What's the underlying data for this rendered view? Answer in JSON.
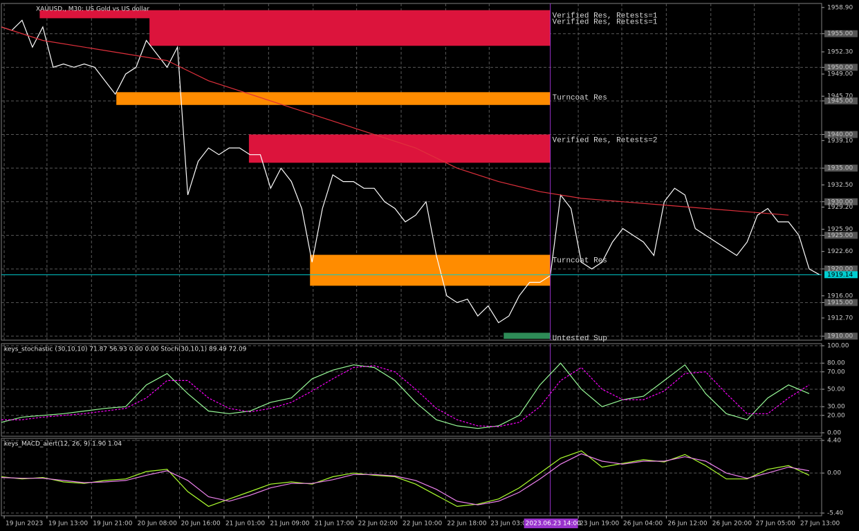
{
  "chart_data": [
    {
      "type": "line",
      "title": "XAUUSD., M30:  US Gold vs US dollar",
      "xlim": [
        0,
        79.2
      ],
      "ylim": [
        1909.4,
        1959.5
      ],
      "xticks": [
        {
          "value": 0.27,
          "label": "19 Jun 2023"
        },
        {
          "value": 4.4,
          "label": "19 Jun 13:00"
        },
        {
          "value": 8.7,
          "label": "19 Jun 21:00"
        },
        {
          "value": 13,
          "label": "20 Jun 08:00"
        },
        {
          "value": 17.2,
          "label": "20 Jun 16:00"
        },
        {
          "value": 21.5,
          "label": "21 Jun 01:00"
        },
        {
          "value": 25.8,
          "label": "21 Jun 09:00"
        },
        {
          "value": 30.1,
          "label": "21 Jun 17:00"
        },
        {
          "value": 34.3,
          "label": "22 Jun 02:00"
        },
        {
          "value": 38.6,
          "label": "22 Jun 10:00"
        },
        {
          "value": 42.9,
          "label": "22 Jun 18:00"
        },
        {
          "value": 47.1,
          "label": "23 Jun 03:00"
        },
        {
          "value": 55.7,
          "label": "23 Jun 19:00"
        },
        {
          "value": 59.9,
          "label": "26 Jun 04:00"
        },
        {
          "value": 64.2,
          "label": "26 Jun 12:00"
        },
        {
          "value": 68.5,
          "label": "26 Jun 20:00"
        },
        {
          "value": 72.7,
          "label": "27 Jun 05:00"
        },
        {
          "value": 77,
          "label": "27 Jun 13:00"
        }
      ],
      "cursor": {
        "value": 53,
        "label": "2023.06.23 14:00"
      },
      "yticks": [
        {
          "value": 1958.9,
          "label": "1958.90"
        },
        {
          "value": 1955,
          "label": "1955.00"
        },
        {
          "value": 1952.3,
          "label": "1952.30"
        },
        {
          "value": 1950,
          "label": "1950.00"
        },
        {
          "value": 1949,
          "label": "1949.00"
        },
        {
          "value": 1945.7,
          "label": "1945.70"
        },
        {
          "value": 1945,
          "label": "1945.00"
        },
        {
          "value": 1940,
          "label": "1940.00"
        },
        {
          "value": 1939.1,
          "label": "1939.10"
        },
        {
          "value": 1935,
          "label": "1935.00"
        },
        {
          "value": 1932.5,
          "label": "1932.50"
        },
        {
          "value": 1930,
          "label": "1930.00"
        },
        {
          "value": 1929.2,
          "label": "1929.20"
        },
        {
          "value": 1925.9,
          "label": "1925.90"
        },
        {
          "value": 1925,
          "label": "1925.00"
        },
        {
          "value": 1922.6,
          "label": "1922.60"
        },
        {
          "value": 1920,
          "label": "1920.00"
        },
        {
          "value": 1916,
          "label": "1916.00"
        },
        {
          "value": 1915,
          "label": "1915.00"
        },
        {
          "value": 1912.7,
          "label": "1912.70"
        },
        {
          "value": 1910,
          "label": "1910.00"
        }
      ],
      "current_price": 1919.14,
      "zones": [
        {
          "label": "Verified Res, Retests=1",
          "x": [
            3.7,
            53
          ],
          "low": 1957.3,
          "high": 1958.5,
          "color": "#dc143c"
        },
        {
          "label": "Verified Res, Retests=1",
          "x": [
            14.3,
            53
          ],
          "low": 1953.2,
          "high": 1957.6,
          "color": "#dc143c"
        },
        {
          "label": "Turncoat Res",
          "x": [
            11.1,
            53
          ],
          "low": 1944.4,
          "high": 1946.3,
          "color": "#ff8c00"
        },
        {
          "label": "Verified Res, Retests=2",
          "x": [
            23.9,
            53
          ],
          "low": 1935.8,
          "high": 1940,
          "color": "#dc143c"
        },
        {
          "label": "Turncoat Res",
          "x": [
            29.8,
            53
          ],
          "low": 1917.5,
          "high": 1922.1,
          "color": "#ff8c00"
        },
        {
          "label": "Untested Sup",
          "x": [
            48.5,
            53
          ],
          "low": 1909.6,
          "high": 1910.5,
          "color": "#2e8b57"
        }
      ],
      "series": [
        {
          "name": "XAUUSD.",
          "color": "#ffffff",
          "x": [
            0,
            1,
            2,
            3,
            4,
            5,
            6,
            7,
            8,
            9,
            10,
            11,
            12,
            13,
            14,
            15,
            16,
            17,
            18,
            19,
            20,
            21,
            22,
            23,
            24,
            25,
            26,
            27,
            28,
            29,
            30,
            31,
            32,
            33,
            34,
            35,
            36,
            37,
            38,
            39,
            40,
            41,
            42,
            43,
            44,
            45,
            46,
            47,
            48,
            49,
            50,
            51,
            52,
            53,
            54,
            55,
            56,
            57,
            58,
            59,
            60,
            61,
            62,
            63,
            64,
            65,
            66,
            67,
            68,
            69,
            70,
            71,
            72,
            73,
            74,
            75,
            76,
            77,
            78,
            79
          ],
          "values": [
            1956,
            1955.5,
            1957,
            1953,
            1956,
            1950,
            1950.5,
            1950,
            1950.5,
            1950,
            1948,
            1946,
            1949,
            1950,
            1954,
            1952,
            1950,
            1953,
            1931,
            1936,
            1938,
            1937,
            1938,
            1938,
            1937,
            1937,
            1932,
            1935,
            1933,
            1929,
            1921,
            1929,
            1934,
            1933,
            1933,
            1932,
            1932,
            1930,
            1929,
            1927,
            1928,
            1930,
            1922,
            1916,
            1915,
            1915.5,
            1913,
            1914.5,
            1912,
            1913,
            1916,
            1918,
            1918,
            1919,
            1931,
            1929,
            1921,
            1920,
            1921,
            1924,
            1926,
            1925,
            1924,
            1922,
            1930,
            1932,
            1931,
            1926,
            1925,
            1924,
            1923,
            1922,
            1924,
            1928,
            1929,
            1927,
            1927,
            1925,
            1920,
            1919.14
          ]
        },
        {
          "name": "MA",
          "color": "#e0303c",
          "x": [
            0,
            4,
            8,
            12,
            16,
            20,
            24,
            28,
            32,
            36,
            40,
            44,
            48,
            52,
            56,
            60,
            64,
            68,
            72,
            76
          ],
          "values": [
            1956,
            1954,
            1953,
            1952,
            1951,
            1948,
            1946,
            1944,
            1942,
            1940,
            1938,
            1935,
            1933,
            1931.5,
            1930.5,
            1930,
            1929.5,
            1929,
            1928.5,
            1928
          ]
        }
      ]
    },
    {
      "type": "line",
      "title": "keys_stochastic (30,10,10) 71.87 56.93 0.00 0.00 Stoch(30,10,1) 89.49 72.09",
      "xlim": [
        0,
        79.2
      ],
      "ylim": [
        -4,
        102.4
      ],
      "yticks": [
        {
          "value": 100,
          "label": "100.00"
        },
        {
          "value": 80,
          "label": "80.00"
        },
        {
          "value": 70,
          "label": "70.00"
        },
        {
          "value": 50,
          "label": "50.00"
        },
        {
          "value": 30,
          "label": "30.00"
        },
        {
          "value": 20,
          "label": "20.00"
        },
        {
          "value": 0,
          "label": "0.00"
        }
      ],
      "series": [
        {
          "name": "Main",
          "color": "#98fb98",
          "dashed": false,
          "x": [
            0,
            2,
            4,
            6,
            8,
            10,
            12,
            14,
            16,
            18,
            20,
            22,
            24,
            26,
            28,
            30,
            32,
            34,
            36,
            38,
            40,
            42,
            44,
            46,
            48,
            50,
            52,
            54,
            56,
            58,
            60,
            62,
            64,
            66,
            68,
            70,
            72,
            74,
            76,
            78
          ],
          "values": [
            12,
            18,
            20,
            22,
            25,
            28,
            30,
            55,
            68,
            45,
            25,
            22,
            25,
            35,
            40,
            62,
            72,
            78,
            75,
            60,
            35,
            15,
            8,
            5,
            8,
            20,
            55,
            80,
            50,
            30,
            38,
            42,
            60,
            78,
            45,
            22,
            15,
            40,
            55,
            45
          ]
        },
        {
          "name": "Signal",
          "color": "#ff00ff",
          "dashed": true,
          "x": [
            0,
            2,
            4,
            6,
            8,
            10,
            12,
            14,
            16,
            18,
            20,
            22,
            24,
            26,
            28,
            30,
            32,
            34,
            36,
            38,
            40,
            42,
            44,
            46,
            48,
            50,
            52,
            54,
            56,
            58,
            60,
            62,
            64,
            66,
            68,
            70,
            72,
            74,
            76,
            78
          ],
          "values": [
            15,
            15,
            18,
            20,
            22,
            25,
            28,
            40,
            60,
            60,
            40,
            28,
            24,
            28,
            35,
            48,
            62,
            75,
            77,
            70,
            50,
            28,
            15,
            8,
            7,
            12,
            30,
            60,
            75,
            50,
            38,
            38,
            48,
            68,
            70,
            45,
            22,
            22,
            40,
            55
          ]
        }
      ]
    },
    {
      "type": "line",
      "title": "keys_MACD_alert(12, 26, 9) 1.90 1.04",
      "xlim": [
        0,
        79.2
      ],
      "ylim": [
        -5.77,
        4.68
      ],
      "yticks": [
        {
          "value": 4.4,
          "label": "4.40"
        },
        {
          "value": 0,
          "label": "0.00"
        },
        {
          "value": -5.4,
          "label": "-5.40"
        }
      ],
      "series": [
        {
          "name": "MACD",
          "color": "#adff2f",
          "dashed": false,
          "x": [
            0,
            2,
            4,
            6,
            8,
            10,
            12,
            14,
            16,
            18,
            20,
            22,
            24,
            26,
            28,
            30,
            32,
            34,
            36,
            38,
            40,
            42,
            44,
            46,
            48,
            50,
            52,
            54,
            56,
            58,
            60,
            62,
            64,
            66,
            68,
            70,
            72,
            74,
            76,
            78
          ],
          "values": [
            -0.5,
            -0.8,
            -0.6,
            -1.2,
            -1.4,
            -1.0,
            -0.8,
            0.2,
            0.5,
            -2.5,
            -4.5,
            -3.5,
            -2.5,
            -1.5,
            -1.2,
            -1.5,
            -0.5,
            0,
            -0.3,
            -0.5,
            -1.5,
            -3.0,
            -4.5,
            -4.2,
            -3.5,
            -2.0,
            0,
            2.0,
            3.0,
            0.8,
            1.3,
            1.8,
            1.5,
            2.5,
            1.0,
            -0.8,
            -0.8,
            0.5,
            1.0,
            -0.3
          ]
        },
        {
          "name": "Signal",
          "color": "#ee82ee",
          "dashed": false,
          "x": [
            0,
            2,
            4,
            6,
            8,
            10,
            12,
            14,
            16,
            18,
            20,
            22,
            24,
            26,
            28,
            30,
            32,
            34,
            36,
            38,
            40,
            42,
            44,
            46,
            48,
            50,
            52,
            54,
            56,
            58,
            60,
            62,
            64,
            66,
            68,
            70,
            72,
            74,
            76,
            78
          ],
          "values": [
            -0.6,
            -0.7,
            -0.7,
            -1.0,
            -1.3,
            -1.2,
            -1.0,
            -0.3,
            0.3,
            -1.0,
            -3.2,
            -3.8,
            -3.0,
            -2.0,
            -1.4,
            -1.4,
            -0.9,
            -0.2,
            -0.2,
            -0.4,
            -1.0,
            -2.2,
            -3.8,
            -4.3,
            -3.8,
            -2.6,
            -0.8,
            1.2,
            2.6,
            1.6,
            1.2,
            1.6,
            1.6,
            2.2,
            1.6,
            0,
            -0.7,
            0,
            0.8,
            0.3
          ]
        }
      ]
    }
  ]
}
